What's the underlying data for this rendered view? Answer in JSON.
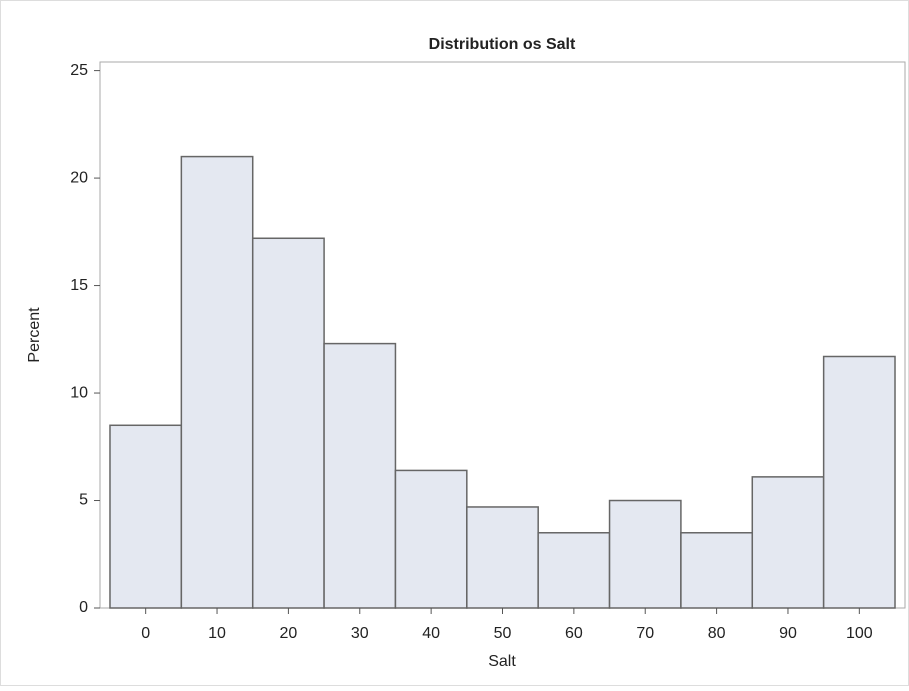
{
  "chart_data": {
    "type": "histogram",
    "title": "Distribution os Salt",
    "x_label": "Salt",
    "y_label": "Percent",
    "bins": [
      -5,
      5,
      15,
      25,
      35,
      45,
      55,
      65,
      75,
      85,
      95,
      105
    ],
    "values": [
      8.5,
      21.0,
      17.2,
      12.3,
      6.4,
      4.7,
      3.5,
      5.0,
      3.5,
      6.1,
      11.7
    ],
    "color": "#e4e8f1",
    "edge_color": "#666666",
    "xlim": [
      -6.4,
      106.4
    ],
    "xticks": [
      0,
      10,
      20,
      30,
      40,
      50,
      60,
      70,
      80,
      90,
      100
    ],
    "ylim": [
      0,
      25.4
    ],
    "yticks": [
      0,
      5,
      10,
      15,
      20,
      25
    ]
  }
}
